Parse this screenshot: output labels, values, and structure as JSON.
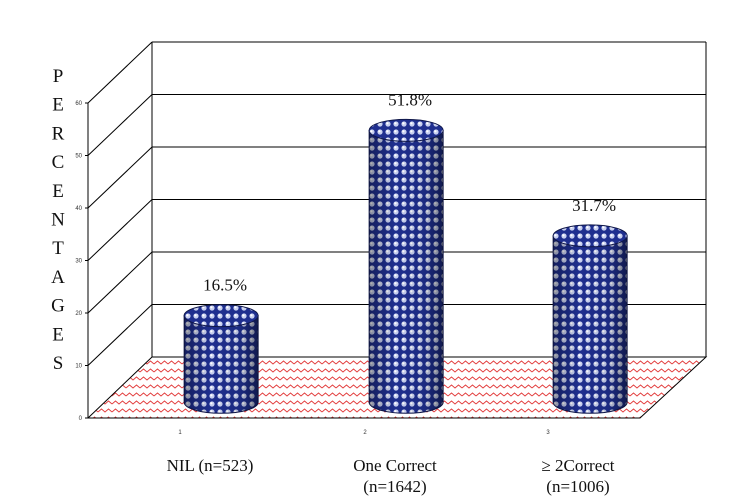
{
  "chart_data": {
    "type": "bar",
    "style": "3d-cylinder",
    "ylabel": "PERCENTAGES",
    "ylim": [
      0,
      60
    ],
    "yticks": [
      "0",
      "10",
      "20",
      "30",
      "40",
      "50",
      "60"
    ],
    "xticks": [
      "1",
      "2",
      "3"
    ],
    "categories": [
      {
        "line1": "NIL (n=523)",
        "line2": ""
      },
      {
        "line1": "One Correct",
        "line2": "(n=1642)"
      },
      {
        "line1": "≥ 2Correct",
        "line2": "(n=1006)"
      }
    ],
    "values": [
      16.5,
      51.8,
      31.7
    ],
    "data_labels": [
      "16.5%",
      "51.8%",
      "31.7%"
    ],
    "grid": true,
    "colors": {
      "bar_fill": "#1f2f8f",
      "bar_dot": "#c8d0f0",
      "floor_pattern": "#e23a3a",
      "gridline": "#000000"
    }
  }
}
